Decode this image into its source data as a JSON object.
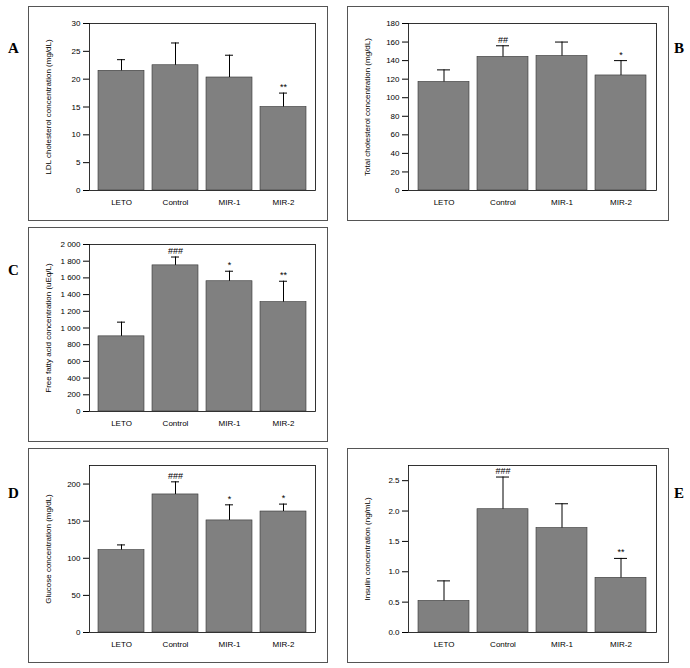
{
  "chart_data": [
    {
      "type": "bar",
      "panel": "A",
      "ylabel": "LDL cholesterol concentration (mg/dL)",
      "categories": [
        "LETO",
        "Control",
        "MIR-1",
        "MIR-2"
      ],
      "values": [
        21.5,
        22.5,
        20.3,
        15.0
      ],
      "errors": [
        2.0,
        4.0,
        4.0,
        2.5
      ],
      "annotations": [
        null,
        null,
        null,
        "**"
      ],
      "color": "#808080",
      "ylim": [
        0,
        30
      ],
      "yticks": [
        0,
        5,
        10,
        15,
        20,
        25,
        30
      ]
    },
    {
      "type": "bar",
      "panel": "B",
      "ylabel": "Total cholesterol concentration (mg/dL)",
      "categories": [
        "LETO",
        "Control",
        "MIR-1",
        "MIR-2"
      ],
      "values": [
        117,
        144,
        145,
        124
      ],
      "errors": [
        13,
        12,
        15,
        16
      ],
      "annotations": [
        null,
        "##",
        null,
        "*"
      ],
      "color": "#808080",
      "ylim": [
        0,
        180
      ],
      "yticks": [
        0,
        20,
        40,
        60,
        80,
        100,
        120,
        140,
        160,
        180
      ]
    },
    {
      "type": "bar",
      "panel": "C",
      "ylabel": "Free fatty acid concentration (uEq/L)",
      "categories": [
        "LETO",
        "Control",
        "MIR-1",
        "MIR-2"
      ],
      "values": [
        900,
        1750,
        1560,
        1310
      ],
      "errors": [
        170,
        100,
        120,
        250
      ],
      "annotations": [
        null,
        "###",
        "*",
        "**"
      ],
      "color": "#808080",
      "ylim": [
        0,
        2000
      ],
      "yticks": [
        0,
        200,
        400,
        600,
        800,
        {
          "value": 1000,
          "label": "1 000"
        },
        {
          "value": 1200,
          "label": "1 200"
        },
        {
          "value": 1400,
          "label": "1 400"
        },
        {
          "value": 1600,
          "label": "1 600"
        },
        {
          "value": 1800,
          "label": "1 800"
        },
        {
          "value": 2000,
          "label": "2 000"
        }
      ]
    },
    {
      "type": "bar",
      "panel": "D",
      "ylabel": "Glucose concentration (mg/dL)",
      "categories": [
        "LETO",
        "Control",
        "MIR-1",
        "MIR-2"
      ],
      "values": [
        111,
        186,
        151,
        163
      ],
      "errors": [
        7,
        17,
        21,
        10
      ],
      "annotations": [
        null,
        "###",
        "*",
        "*"
      ],
      "color": "#808080",
      "ylim": [
        0,
        225
      ],
      "yticks": [
        0,
        50,
        100,
        150,
        200
      ]
    },
    {
      "type": "bar",
      "panel": "E",
      "ylabel": "Insulin concentration (ng/mL)",
      "categories": [
        "LETO",
        "Control",
        "MIR-1",
        "MIR-2"
      ],
      "values": [
        0.52,
        2.03,
        1.72,
        0.9
      ],
      "errors": [
        0.33,
        0.53,
        0.4,
        0.32
      ],
      "annotations": [
        null,
        "###",
        null,
        "**"
      ],
      "color": "#808080",
      "ylim": [
        0,
        2.75
      ],
      "yticks": [
        {
          "value": 0,
          "label": "0.0"
        },
        0.5,
        {
          "value": 1,
          "label": "1.0"
        },
        1.5,
        {
          "value": 2,
          "label": "2.0"
        },
        2.5
      ]
    }
  ]
}
